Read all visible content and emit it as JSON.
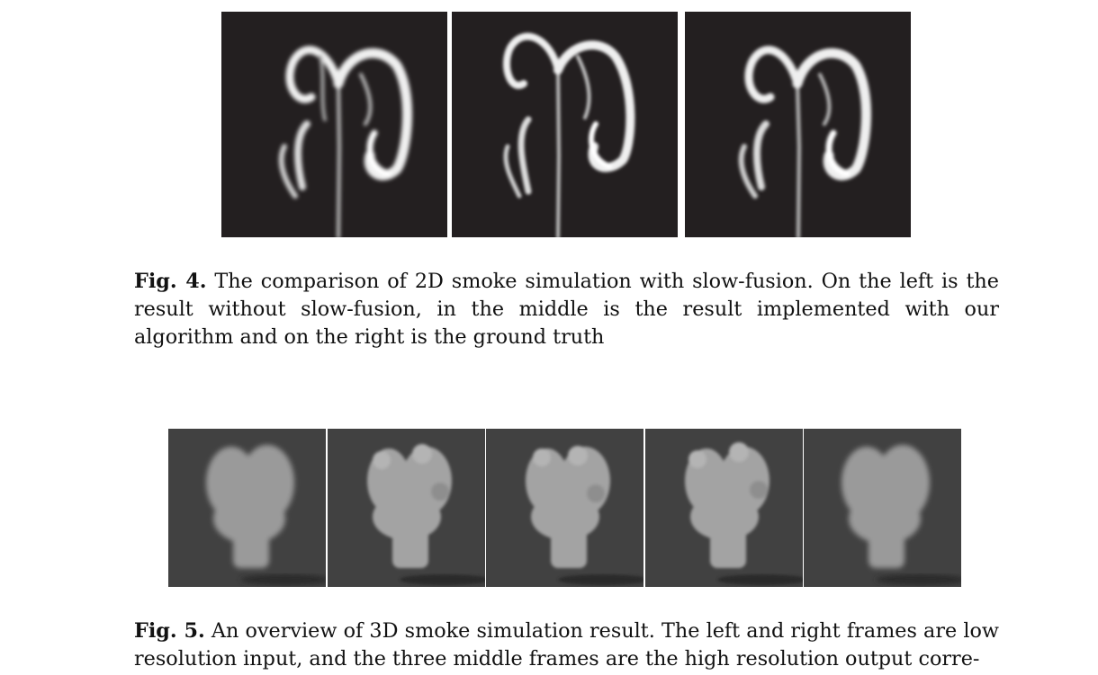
{
  "figure4": {
    "label": "Fig. 4.",
    "caption": "The comparison of 2D smoke simulation with slow-fusion. On the left is the result without slow-fusion, in the middle is the result implemented with our algorithm and on the right is the ground truth"
  },
  "figure5": {
    "label": "Fig. 5.",
    "caption": "An overview of 3D smoke simulation result. The left and right frames are low resolution input, and the three middle frames are the high resolution output corre-"
  },
  "colors": {
    "smoke_2d_background": "#231f20",
    "smoke_3d_background": "#414141",
    "smoke_white": "#f2f2f2",
    "smoke_grey": "#9a9a9a"
  }
}
